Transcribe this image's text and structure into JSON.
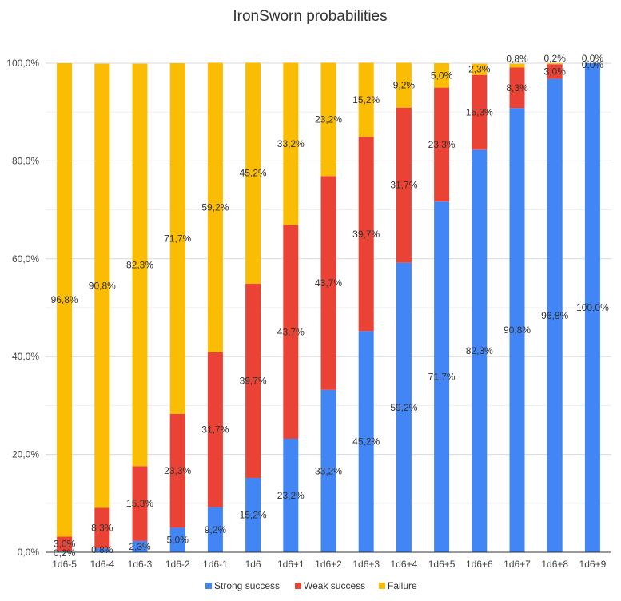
{
  "chart_data": {
    "type": "bar",
    "stacked": true,
    "title": "IronSworn probabilities",
    "xlabel": "",
    "ylabel": "",
    "ylim": [
      0,
      100
    ],
    "yticks": [
      "0,0%",
      "20,0%",
      "40,0%",
      "60,0%",
      "80,0%",
      "100,0%"
    ],
    "grid": true,
    "legend_position": "bottom",
    "categories": [
      "1d6-5",
      "1d6-4",
      "1d6-3",
      "1d6-2",
      "1d6-1",
      "1d6",
      "1d6+1",
      "1d6+2",
      "1d6+3",
      "1d6+4",
      "1d6+5",
      "1d6+6",
      "1d6+7",
      "1d6+8",
      "1d6+9"
    ],
    "series": [
      {
        "name": "Strong success",
        "color": "#4285f4",
        "values": [
          0.2,
          0.8,
          2.3,
          5.0,
          9.2,
          15.2,
          23.2,
          33.2,
          45.2,
          59.2,
          71.7,
          82.3,
          90.8,
          96.8,
          100.0
        ],
        "labels": [
          "0,2%",
          "0,8%",
          "2,3%",
          "5,0%",
          "9,2%",
          "15,2%",
          "23,2%",
          "33,2%",
          "45,2%",
          "59,2%",
          "71,7%",
          "82,3%",
          "90,8%",
          "96,8%",
          "100,0%"
        ]
      },
      {
        "name": "Weak success",
        "color": "#ea4335",
        "values": [
          3.0,
          8.3,
          15.3,
          23.3,
          31.7,
          39.7,
          43.7,
          43.7,
          39.7,
          31.7,
          23.3,
          15.3,
          8.3,
          3.0,
          0.0
        ],
        "labels": [
          "3,0%",
          "8,3%",
          "15,3%",
          "23,3%",
          "31,7%",
          "39,7%",
          "43,7%",
          "43,7%",
          "39,7%",
          "31,7%",
          "23,3%",
          "15,3%",
          "8,3%",
          "3,0%",
          "0,0%"
        ]
      },
      {
        "name": "Failure",
        "color": "#fbbc04",
        "values": [
          96.8,
          90.8,
          82.3,
          71.7,
          59.2,
          45.2,
          33.2,
          23.2,
          15.2,
          9.2,
          5.0,
          2.3,
          0.8,
          0.2,
          0.0
        ],
        "labels": [
          "96,8%",
          "90,8%",
          "82,3%",
          "71,7%",
          "59,2%",
          "45,2%",
          "33,2%",
          "23,2%",
          "15,2%",
          "9,2%",
          "5,0%",
          "2,3%",
          "0,8%",
          "0,2%",
          "0,0%"
        ]
      }
    ]
  }
}
